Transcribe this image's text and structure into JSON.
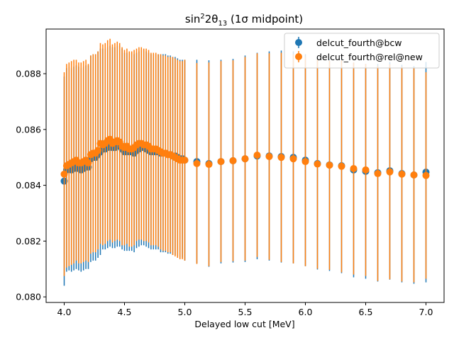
{
  "chart_data": {
    "type": "scatter",
    "title_main": "sin",
    "title_sup": "2",
    "title_mid": "2θ",
    "title_sub": "13",
    "title_tail": " (1σ midpoint)",
    "xlabel": "Delayed low cut [MeV]",
    "ylabel": "",
    "xlim": [
      3.85,
      7.15
    ],
    "ylim": [
      0.0798,
      0.0896
    ],
    "xticks": [
      4.0,
      4.5,
      5.0,
      5.5,
      6.0,
      6.5,
      7.0
    ],
    "xtick_labels": [
      "4.0",
      "4.5",
      "5.0",
      "5.5",
      "6.0",
      "6.5",
      "7.0"
    ],
    "yticks": [
      0.08,
      0.082,
      0.084,
      0.086,
      0.088
    ],
    "ytick_labels": [
      "0.080",
      "0.082",
      "0.084",
      "0.086",
      "0.088"
    ],
    "grid": false,
    "legend_position": "top-right",
    "series": [
      {
        "name": "delcut_fourth@bcw",
        "color": "#1f77b4",
        "x": [
          4.0,
          4.02,
          4.04,
          4.06,
          4.08,
          4.1,
          4.12,
          4.14,
          4.16,
          4.18,
          4.2,
          4.22,
          4.24,
          4.26,
          4.28,
          4.3,
          4.32,
          4.34,
          4.36,
          4.38,
          4.4,
          4.42,
          4.44,
          4.46,
          4.48,
          4.5,
          4.52,
          4.54,
          4.56,
          4.58,
          4.6,
          4.62,
          4.64,
          4.66,
          4.68,
          4.7,
          4.72,
          4.74,
          4.76,
          4.78,
          4.8,
          4.82,
          4.84,
          4.86,
          4.88,
          4.9,
          4.92,
          4.94,
          4.96,
          4.98,
          5.0,
          5.1,
          5.2,
          5.3,
          5.4,
          5.5,
          5.6,
          5.7,
          5.8,
          5.9,
          6.0,
          6.1,
          6.2,
          6.3,
          6.4,
          6.5,
          6.6,
          6.7,
          6.8,
          6.9,
          7.0
        ],
        "y": [
          0.08415,
          0.08455,
          0.0846,
          0.08455,
          0.0846,
          0.08465,
          0.0846,
          0.08455,
          0.0846,
          0.08465,
          0.08465,
          0.08495,
          0.085,
          0.085,
          0.0851,
          0.0852,
          0.0853,
          0.0853,
          0.08535,
          0.0854,
          0.08535,
          0.08535,
          0.0854,
          0.0854,
          0.0853,
          0.0852,
          0.0852,
          0.0852,
          0.0852,
          0.08515,
          0.08525,
          0.0853,
          0.08535,
          0.08535,
          0.0853,
          0.08525,
          0.0852,
          0.0852,
          0.0852,
          0.0852,
          0.08515,
          0.08515,
          0.08515,
          0.0851,
          0.0851,
          0.08505,
          0.08505,
          0.085,
          0.08495,
          0.08495,
          0.0849,
          0.08485,
          0.08478,
          0.08485,
          0.08488,
          0.08495,
          0.08505,
          0.08505,
          0.08503,
          0.085,
          0.0849,
          0.08478,
          0.08473,
          0.0847,
          0.08455,
          0.0845,
          0.08445,
          0.08452,
          0.08442,
          0.08437,
          0.08447
        ],
        "yerr": [
          0.00375,
          0.00365,
          0.00365,
          0.00365,
          0.00365,
          0.00365,
          0.00365,
          0.00365,
          0.00365,
          0.00365,
          0.00365,
          0.0037,
          0.0037,
          0.0037,
          0.0037,
          0.0037,
          0.0036,
          0.0036,
          0.0036,
          0.0036,
          0.0036,
          0.0036,
          0.0036,
          0.0036,
          0.0036,
          0.00355,
          0.00355,
          0.00355,
          0.00355,
          0.00355,
          0.0035,
          0.0035,
          0.0035,
          0.0035,
          0.0035,
          0.0035,
          0.0035,
          0.0035,
          0.0035,
          0.0035,
          0.00355,
          0.00355,
          0.00355,
          0.00355,
          0.00355,
          0.00355,
          0.00355,
          0.00355,
          0.00355,
          0.00355,
          0.0036,
          0.00365,
          0.0037,
          0.00365,
          0.00365,
          0.0037,
          0.0037,
          0.00375,
          0.0038,
          0.0038,
          0.0038,
          0.0038,
          0.0038,
          0.00385,
          0.00385,
          0.00385,
          0.0039,
          0.0039,
          0.0039,
          0.0039,
          0.00395
        ]
      },
      {
        "name": "delcut_fourth@rel@new",
        "color": "#ff7f0e",
        "x": [
          4.0,
          4.02,
          4.04,
          4.06,
          4.08,
          4.1,
          4.12,
          4.14,
          4.16,
          4.18,
          4.2,
          4.22,
          4.24,
          4.26,
          4.28,
          4.3,
          4.32,
          4.34,
          4.36,
          4.38,
          4.4,
          4.42,
          4.44,
          4.46,
          4.48,
          4.5,
          4.52,
          4.54,
          4.56,
          4.58,
          4.6,
          4.62,
          4.64,
          4.66,
          4.68,
          4.7,
          4.72,
          4.74,
          4.76,
          4.78,
          4.8,
          4.82,
          4.84,
          4.86,
          4.88,
          4.9,
          4.92,
          4.94,
          4.96,
          4.98,
          5.0,
          5.1,
          5.2,
          5.3,
          5.4,
          5.5,
          5.6,
          5.7,
          5.8,
          5.9,
          6.0,
          6.1,
          6.2,
          6.3,
          6.4,
          6.5,
          6.6,
          6.7,
          6.8,
          6.9,
          7.0
        ],
        "y": [
          0.0844,
          0.0847,
          0.08475,
          0.0848,
          0.08485,
          0.0849,
          0.0848,
          0.0848,
          0.08485,
          0.0849,
          0.0848,
          0.0851,
          0.08515,
          0.08515,
          0.08525,
          0.0855,
          0.08545,
          0.0855,
          0.0856,
          0.08565,
          0.0855,
          0.08555,
          0.0856,
          0.08555,
          0.0854,
          0.08535,
          0.0854,
          0.0853,
          0.0853,
          0.08535,
          0.08545,
          0.0855,
          0.0855,
          0.08545,
          0.08545,
          0.0854,
          0.0853,
          0.0853,
          0.0853,
          0.08525,
          0.0852,
          0.08515,
          0.08515,
          0.0851,
          0.0851,
          0.08505,
          0.085,
          0.08495,
          0.0849,
          0.0849,
          0.0849,
          0.08478,
          0.08475,
          0.08485,
          0.08488,
          0.08495,
          0.08508,
          0.08503,
          0.085,
          0.08495,
          0.08485,
          0.08476,
          0.08472,
          0.08468,
          0.0846,
          0.08455,
          0.08442,
          0.08448,
          0.0844,
          0.08437,
          0.08435
        ],
        "yerr": [
          0.00365,
          0.00365,
          0.00365,
          0.00365,
          0.00365,
          0.0036,
          0.0036,
          0.0036,
          0.0036,
          0.0036,
          0.00355,
          0.00355,
          0.00355,
          0.00355,
          0.00355,
          0.0036,
          0.0036,
          0.0036,
          0.0036,
          0.0036,
          0.00355,
          0.00355,
          0.00355,
          0.00355,
          0.00355,
          0.0035,
          0.0035,
          0.0035,
          0.0035,
          0.0035,
          0.00345,
          0.00345,
          0.00345,
          0.00345,
          0.00345,
          0.00345,
          0.00345,
          0.00345,
          0.00345,
          0.00345,
          0.0035,
          0.0035,
          0.0035,
          0.0035,
          0.0035,
          0.00355,
          0.00355,
          0.00355,
          0.00355,
          0.00355,
          0.0036,
          0.0036,
          0.00365,
          0.0036,
          0.0036,
          0.00365,
          0.00365,
          0.0037,
          0.00375,
          0.00375,
          0.00375,
          0.00375,
          0.00375,
          0.0038,
          0.0038,
          0.0038,
          0.00385,
          0.00385,
          0.00385,
          0.00385,
          0.0037
        ]
      }
    ]
  }
}
